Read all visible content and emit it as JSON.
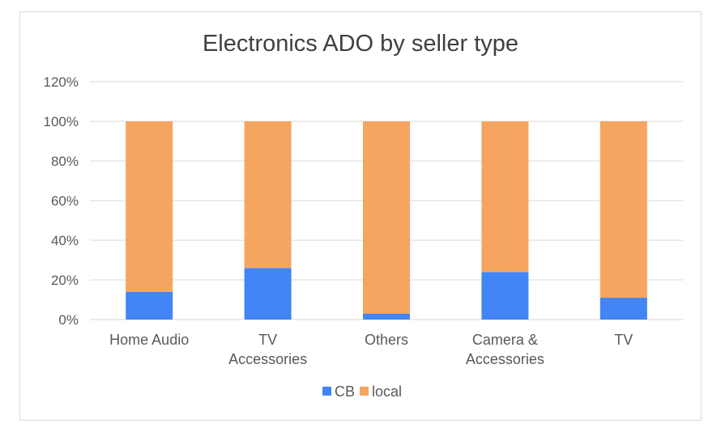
{
  "chart_data": {
    "type": "bar",
    "stacked": true,
    "title": "Electronics ADO by seller type",
    "categories": [
      [
        "Home Audio"
      ],
      [
        "TV",
        "Accessories"
      ],
      [
        "Others"
      ],
      [
        "Camera &",
        "Accessories"
      ],
      [
        "TV"
      ]
    ],
    "series": [
      {
        "name": "CB",
        "color": "#4285f4",
        "values": [
          0.14,
          0.26,
          0.03,
          0.24,
          0.11
        ]
      },
      {
        "name": "local",
        "color": "#f6a561",
        "values": [
          0.86,
          0.74,
          0.97,
          0.76,
          0.89
        ]
      }
    ],
    "ylim": [
      0,
      1.2
    ],
    "yticks": [
      "0%",
      "20%",
      "40%",
      "60%",
      "80%",
      "100%",
      "120%"
    ],
    "grid": true,
    "legend_position": "bottom"
  }
}
